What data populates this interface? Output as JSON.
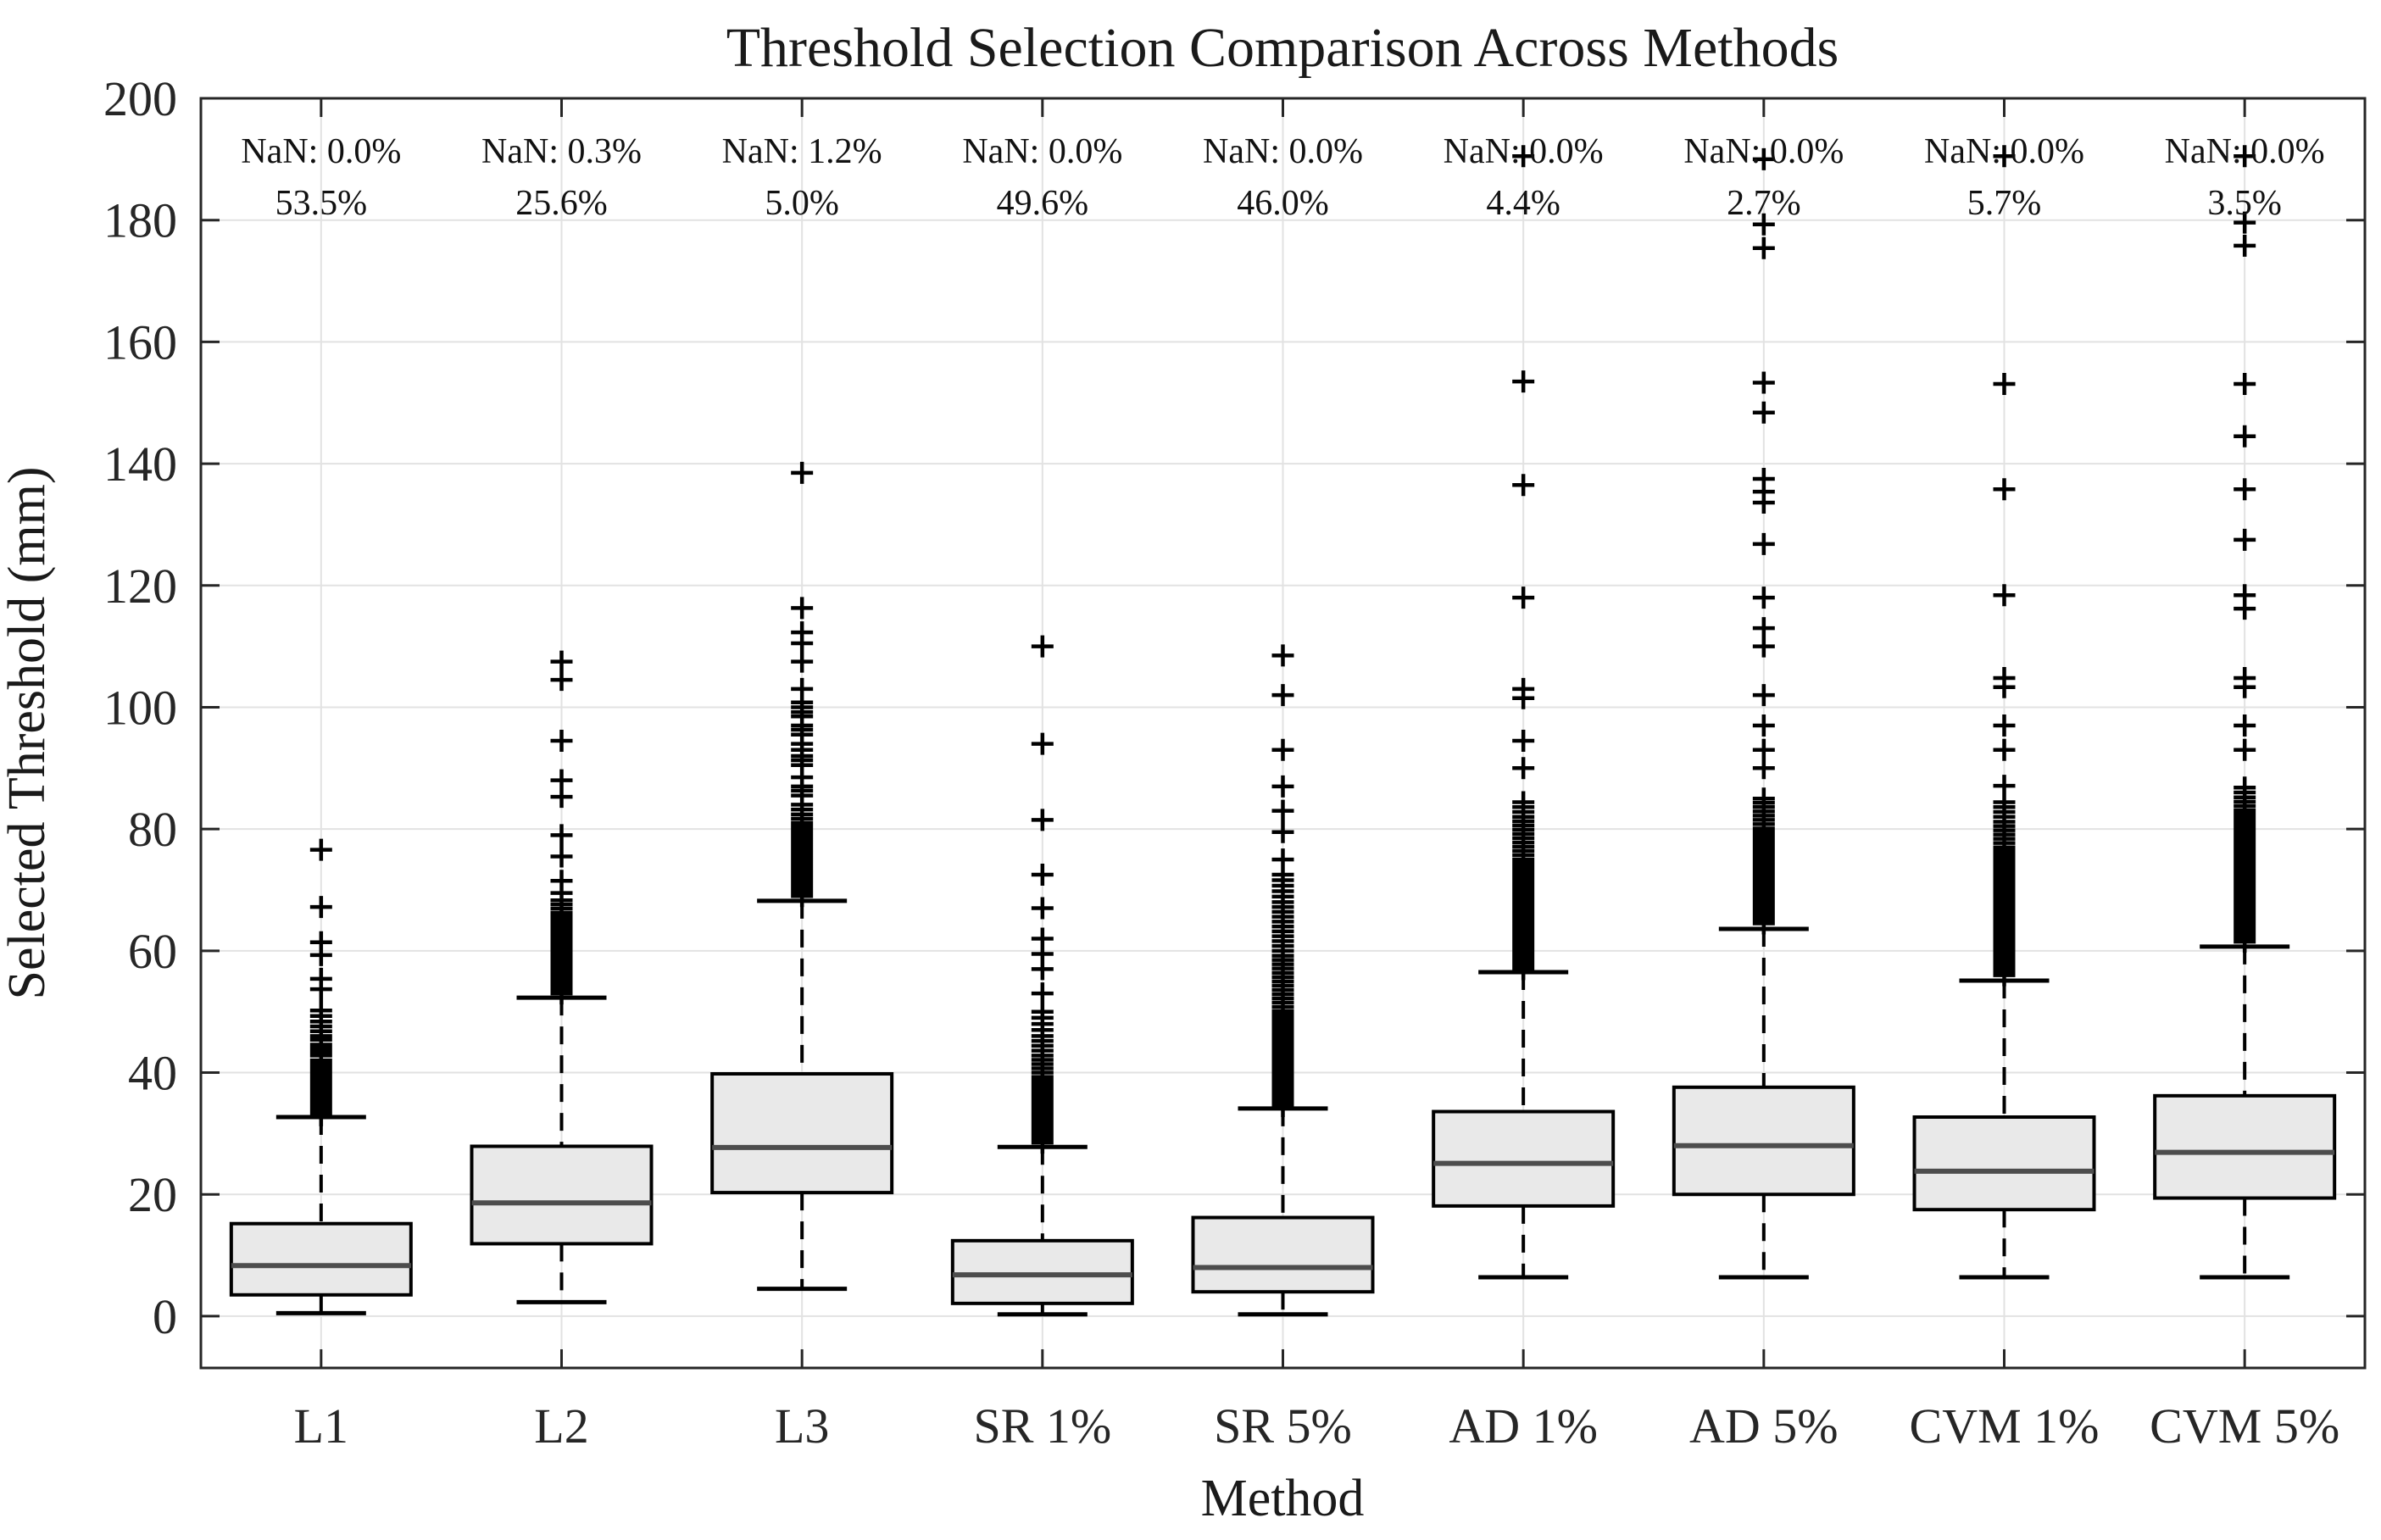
{
  "chart_data": {
    "type": "boxplot",
    "title": "Threshold Selection Comparison Across Methods",
    "xlabel": "Method",
    "ylabel": "Selected Threshold (mm)",
    "ylim": [
      -8.5,
      200
    ],
    "yticks": [
      0,
      20,
      40,
      60,
      80,
      100,
      120,
      140,
      160,
      180,
      200
    ],
    "grid": "both-light",
    "legend": "none",
    "marker": "plus-marker",
    "colors": {
      "box_fill": "#e9e9e9",
      "box_edge": "#000000",
      "median": "#4d4d4d",
      "whisker": "#000000",
      "outlier": "#000000",
      "gridline": "#e2e2e2",
      "axis": "#262626",
      "text": "#1a1a1a",
      "background": "#ffffff"
    },
    "categories": [
      "L1",
      "L2",
      "L3",
      "SR 1%",
      "SR 5%",
      "AD 1%",
      "AD 5%",
      "CVM 1%",
      "CVM 5%"
    ],
    "annotations": {
      "nan_row": [
        "NaN: 0.0%",
        "NaN: 0.3%",
        "NaN: 1.2%",
        "NaN: 0.0%",
        "NaN: 0.0%",
        "NaN: 0.0%",
        "NaN: 0.0%",
        "NaN: 0.0%",
        "NaN: 0.0%"
      ],
      "pct_row": [
        "53.5%",
        "25.6%",
        "5.0%",
        "49.6%",
        "46.0%",
        "4.4%",
        "2.7%",
        "5.7%",
        "3.5%"
      ],
      "nan_row_y_value": 191.5,
      "pct_row_y_value": 183
    },
    "series": [
      {
        "name": "L1",
        "whislo": 0.5,
        "q1": 3.5,
        "med": 8.3,
        "q3": 15.2,
        "whishi": 32.7,
        "outliers": [
          33.0,
          33.6,
          34.2,
          34.8,
          35.4,
          36.0,
          36.6,
          37.2,
          37.8,
          38.4,
          39.0,
          39.6,
          40.2,
          40.8,
          41.4,
          42.0,
          42.8,
          43.4,
          44.0,
          44.6,
          45.4,
          46.0,
          46.8,
          47.6,
          48.4,
          49.3,
          50.2,
          53.7,
          55.4,
          59.3,
          61.4,
          67.2,
          76.6
        ]
      },
      {
        "name": "L2",
        "whislo": 2.3,
        "q1": 11.9,
        "med": 18.6,
        "q3": 27.9,
        "whishi": 52.3,
        "outliers": [
          53.0,
          53.6,
          54.2,
          54.8,
          55.4,
          56.0,
          56.6,
          57.2,
          57.8,
          58.4,
          59.0,
          59.6,
          60.2,
          60.8,
          61.4,
          62.0,
          62.6,
          63.2,
          63.8,
          64.4,
          65.0,
          65.6,
          66.2,
          66.9,
          67.6,
          68.3,
          69.5,
          71.5,
          75.5,
          79.0,
          85.3,
          88.0,
          94.5,
          104.5,
          107.5
        ]
      },
      {
        "name": "L3",
        "whislo": 4.5,
        "q1": 20.3,
        "med": 27.7,
        "q3": 39.8,
        "whishi": 68.2,
        "outliers": [
          69.0,
          69.6,
          70.2,
          70.8,
          71.4,
          72.0,
          72.6,
          73.2,
          73.8,
          74.4,
          75.0,
          75.6,
          76.2,
          76.8,
          77.4,
          78.0,
          78.6,
          79.2,
          79.8,
          80.4,
          81.0,
          81.7,
          82.4,
          83.2,
          84.0,
          85.5,
          86.3,
          87.0,
          88.5,
          90.5,
          91.3,
          92.0,
          93.0,
          94.0,
          95.5,
          96.3,
          97.0,
          98.5,
          99.2,
          100.0,
          100.8,
          103.0,
          107.5,
          110.5,
          112.3,
          116.3,
          138.5
        ]
      },
      {
        "name": "SR 1%",
        "whislo": 0.3,
        "q1": 2.1,
        "med": 6.8,
        "q3": 12.4,
        "whishi": 27.8,
        "outliers": [
          28.5,
          29.1,
          29.7,
          30.3,
          30.9,
          31.5,
          32.1,
          32.7,
          33.3,
          33.9,
          34.5,
          35.1,
          35.7,
          36.3,
          36.9,
          37.5,
          38.1,
          38.7,
          39.3,
          40.0,
          40.7,
          41.4,
          42.1,
          42.8,
          43.6,
          44.4,
          45.2,
          46.0,
          47.0,
          48.0,
          49.0,
          50.0,
          53.0,
          57.0,
          59.5,
          62.0,
          67.0,
          72.5,
          81.5,
          94.0,
          110.0
        ]
      },
      {
        "name": "SR 5%",
        "whislo": 0.3,
        "q1": 4.0,
        "med": 8.0,
        "q3": 16.2,
        "whishi": 34.1,
        "outliers": [
          34.5,
          35.1,
          35.7,
          36.3,
          36.9,
          37.5,
          38.1,
          38.7,
          39.3,
          39.9,
          40.5,
          41.1,
          41.7,
          42.3,
          42.9,
          43.5,
          44.1,
          44.7,
          45.3,
          45.9,
          46.5,
          47.1,
          47.7,
          48.3,
          48.9,
          49.5,
          50.1,
          50.8,
          51.5,
          52.2,
          52.9,
          53.6,
          54.3,
          55.0,
          55.7,
          56.4,
          57.1,
          57.8,
          58.5,
          59.2,
          60.0,
          60.8,
          61.6,
          62.4,
          63.2,
          64.0,
          64.8,
          65.6,
          66.4,
          67.2,
          68.0,
          68.9,
          69.8,
          70.7,
          71.6,
          72.5,
          75.0,
          79.5,
          83.0,
          87.0,
          93.0,
          102.0,
          108.5
        ]
      },
      {
        "name": "AD 1%",
        "whislo": 6.4,
        "q1": 18.1,
        "med": 25.1,
        "q3": 33.6,
        "whishi": 56.5,
        "outliers": [
          57.0,
          57.6,
          58.2,
          58.8,
          59.4,
          60.0,
          60.6,
          61.2,
          61.8,
          62.4,
          63.0,
          63.6,
          64.2,
          64.8,
          65.4,
          66.0,
          66.6,
          67.2,
          67.8,
          68.4,
          69.0,
          69.6,
          70.2,
          70.8,
          71.4,
          72.0,
          72.6,
          73.2,
          73.8,
          74.4,
          75.0,
          75.7,
          76.4,
          77.1,
          77.8,
          78.5,
          79.2,
          79.9,
          80.6,
          81.3,
          82.0,
          82.8,
          83.6,
          84.4,
          90.0,
          94.5,
          101.5,
          103.0,
          118.0,
          136.5,
          153.5,
          190.5
        ]
      },
      {
        "name": "AD 5%",
        "whislo": 6.4,
        "q1": 20.0,
        "med": 28.0,
        "q3": 37.6,
        "whishi": 63.6,
        "outliers": [
          64.5,
          65.1,
          65.7,
          66.3,
          66.9,
          67.5,
          68.1,
          68.7,
          69.3,
          69.9,
          70.5,
          71.1,
          71.7,
          72.3,
          72.9,
          73.5,
          74.1,
          74.7,
          75.3,
          75.9,
          76.5,
          77.1,
          77.7,
          78.3,
          78.9,
          79.5,
          80.1,
          80.8,
          81.5,
          82.2,
          82.9,
          83.6,
          84.3,
          85.0,
          90.0,
          93.0,
          97.0,
          102.0,
          110.0,
          113.0,
          118.0,
          126.8,
          133.6,
          135.4,
          137.5,
          148.4,
          153.3,
          175.4,
          179.3,
          190.0
        ]
      },
      {
        "name": "CVM 1%",
        "whislo": 6.4,
        "q1": 17.5,
        "med": 23.8,
        "q3": 32.7,
        "whishi": 55.1,
        "outliers": [
          56.0,
          56.6,
          57.2,
          57.8,
          58.4,
          59.0,
          59.6,
          60.2,
          60.8,
          61.4,
          62.0,
          62.6,
          63.2,
          63.8,
          64.4,
          65.0,
          65.6,
          66.2,
          66.8,
          67.4,
          68.0,
          68.6,
          69.2,
          69.8,
          70.4,
          71.0,
          71.6,
          72.2,
          72.8,
          73.4,
          74.0,
          74.6,
          75.2,
          75.8,
          76.4,
          77.0,
          77.7,
          78.4,
          79.1,
          79.8,
          80.5,
          81.2,
          82.0,
          82.8,
          83.6,
          84.4,
          87.1,
          93.0,
          97.0,
          103.3,
          104.8,
          118.4,
          135.8,
          153.1,
          190.5
        ]
      },
      {
        "name": "CVM 5%",
        "whislo": 6.4,
        "q1": 19.4,
        "med": 26.9,
        "q3": 36.2,
        "whishi": 60.7,
        "outliers": [
          61.5,
          62.1,
          62.7,
          63.3,
          63.9,
          64.5,
          65.1,
          65.7,
          66.3,
          66.9,
          67.5,
          68.1,
          68.7,
          69.3,
          69.9,
          70.5,
          71.1,
          71.7,
          72.3,
          72.9,
          73.5,
          74.1,
          74.7,
          75.3,
          75.9,
          76.5,
          77.1,
          77.7,
          78.3,
          78.9,
          79.5,
          80.1,
          80.7,
          81.3,
          81.9,
          82.5,
          83.1,
          83.8,
          84.5,
          85.2,
          86.0,
          86.8,
          93.0,
          97.0,
          103.3,
          104.8,
          116.2,
          118.4,
          127.5,
          135.8,
          144.5,
          153.1,
          175.8,
          179.6,
          190.5
        ]
      }
    ]
  }
}
